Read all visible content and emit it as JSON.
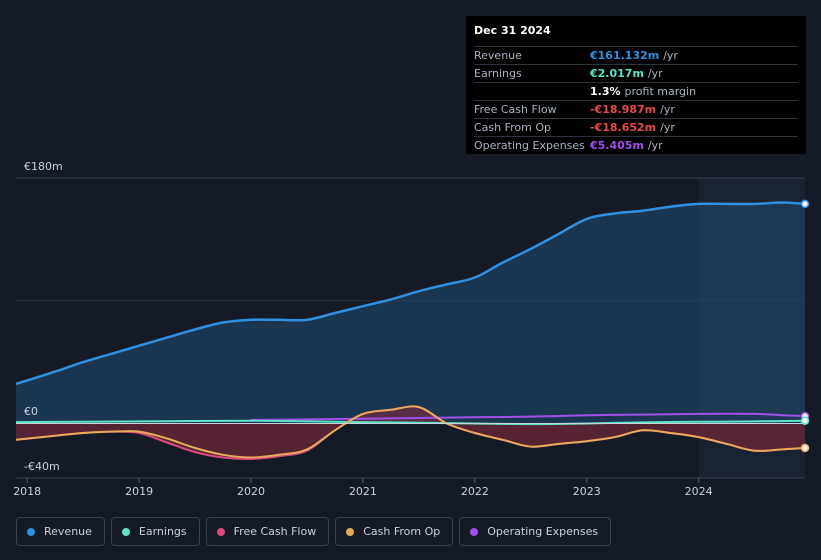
{
  "colors": {
    "revenue": "#2f8fe0",
    "earnings": "#5de3c5",
    "free_cash_flow": "#d9487f",
    "cash_from_op": "#e8a95c",
    "operating_expenses": "#a050e8"
  },
  "tooltip": {
    "date": "Dec 31 2024",
    "rows": [
      {
        "label": "Revenue",
        "value": "€161.132m",
        "unit": "/yr",
        "color": "#2f8fe0"
      },
      {
        "label": "Earnings",
        "value": "€2.017m",
        "unit": "/yr",
        "color": "#5de3c5"
      },
      {
        "label": "",
        "value": "1.3%",
        "unit": "profit margin",
        "color": "#ffffff"
      },
      {
        "label": "Free Cash Flow",
        "value": "-€18.987m",
        "unit": "/yr",
        "color": "#e5484d"
      },
      {
        "label": "Cash From Op",
        "value": "-€18.652m",
        "unit": "/yr",
        "color": "#e5484d"
      },
      {
        "label": "Operating Expenses",
        "value": "€5.405m",
        "unit": "/yr",
        "color": "#a050e8"
      }
    ]
  },
  "legend": [
    {
      "name": "revenue",
      "label": "Revenue",
      "color": "#2f8fe0"
    },
    {
      "name": "earnings",
      "label": "Earnings",
      "color": "#5de3c5"
    },
    {
      "name": "free-cash-flow",
      "label": "Free Cash Flow",
      "color": "#d9487f"
    },
    {
      "name": "cash-from-op",
      "label": "Cash From Op",
      "color": "#e8a95c"
    },
    {
      "name": "operating-expenses",
      "label": "Operating Expenses",
      "color": "#a050e8"
    }
  ],
  "chart_data": {
    "type": "area",
    "title": "",
    "xlabel": "",
    "ylabel": "",
    "ylim": [
      -40,
      180
    ],
    "xlim": [
      2017.9,
      2024.95
    ],
    "y_tick_labels": [
      {
        "value": 180,
        "label": "€180m"
      },
      {
        "value": 0,
        "label": "€0"
      },
      {
        "value": -40,
        "label": "-€40m"
      }
    ],
    "x_ticks": [
      2018,
      2019,
      2020,
      2021,
      2022,
      2023,
      2024
    ],
    "x_tick_labels": [
      "2018",
      "2019",
      "2020",
      "2021",
      "2022",
      "2023",
      "2024"
    ],
    "highlight_from": 2024.0,
    "series": [
      {
        "name": "Revenue",
        "key": "revenue",
        "color": "#2f8fe0",
        "fill": true,
        "x": [
          2017.9,
          2018.25,
          2018.5,
          2018.75,
          2019.0,
          2019.25,
          2019.5,
          2019.75,
          2020.0,
          2020.25,
          2020.5,
          2020.75,
          2021.0,
          2021.25,
          2021.5,
          2021.75,
          2022.0,
          2022.25,
          2022.5,
          2022.75,
          2023.0,
          2023.25,
          2023.5,
          2023.75,
          2024.0,
          2024.25,
          2024.5,
          2024.75,
          2024.95
        ],
        "values": [
          29,
          38,
          45,
          51,
          57,
          63,
          69,
          74,
          76,
          76,
          76,
          81,
          86,
          91,
          97,
          102,
          107,
          118,
          128,
          139,
          150,
          154,
          156,
          159,
          161,
          161,
          161,
          162,
          161
        ]
      },
      {
        "name": "Earnings",
        "key": "earnings",
        "color": "#5de3c5",
        "fill": false,
        "x": [
          2017.9,
          2018.5,
          2019.0,
          2019.5,
          2020.0,
          2020.5,
          2021.0,
          2021.5,
          2022.0,
          2022.5,
          2023.0,
          2023.5,
          2024.0,
          2024.5,
          2024.95
        ],
        "values": [
          1,
          1.2,
          1.5,
          1.8,
          2,
          1.5,
          1,
          0.5,
          0,
          -0.5,
          0,
          0.8,
          1.2,
          1.5,
          2
        ]
      },
      {
        "name": "Free Cash Flow",
        "key": "free_cash_flow",
        "color": "#d9487f",
        "fill": true,
        "x": [
          2017.9,
          2018.25,
          2018.5,
          2018.75,
          2019.0,
          2019.25,
          2019.5,
          2019.75,
          2020.0,
          2020.25,
          2020.5,
          2020.75,
          2021.0,
          2021.25,
          2021.5,
          2021.75,
          2022.0,
          2022.25,
          2022.5,
          2022.75,
          2023.0,
          2023.25,
          2023.5,
          2023.75,
          2024.0,
          2024.25,
          2024.5,
          2024.75,
          2024.95
        ],
        "values": [
          -12,
          -9,
          -7,
          -6,
          -7,
          -14,
          -21,
          -25,
          -26,
          -24,
          -20,
          -5,
          7,
          10,
          12,
          0,
          -7,
          -12,
          -17,
          -15,
          -13,
          -10,
          -5,
          -7,
          -10,
          -15,
          -20,
          -19,
          -18
        ]
      },
      {
        "name": "Cash From Op",
        "key": "cash_from_op",
        "color": "#e8a95c",
        "fill": false,
        "x": [
          2017.9,
          2018.25,
          2018.5,
          2018.75,
          2019.0,
          2019.25,
          2019.5,
          2019.75,
          2020.0,
          2020.25,
          2020.5,
          2020.75,
          2021.0,
          2021.25,
          2021.5,
          2021.75,
          2022.0,
          2022.25,
          2022.5,
          2022.75,
          2023.0,
          2023.25,
          2023.5,
          2023.75,
          2024.0,
          2024.25,
          2024.5,
          2024.75,
          2024.95
        ],
        "values": [
          -12,
          -9,
          -7,
          -6,
          -6,
          -11,
          -18,
          -23,
          -25,
          -23,
          -19,
          -5,
          7,
          10,
          12,
          0,
          -7,
          -12,
          -17,
          -15,
          -13,
          -10,
          -5,
          -7,
          -10,
          -15,
          -20,
          -19,
          -18
        ]
      },
      {
        "name": "Operating Expenses",
        "key": "operating_expenses",
        "color": "#a050e8",
        "fill": false,
        "x": [
          2020.0,
          2020.5,
          2021.0,
          2021.5,
          2022.0,
          2022.5,
          2023.0,
          2023.5,
          2024.0,
          2024.5,
          2024.75,
          2024.95
        ],
        "values": [
          2.5,
          3,
          3.5,
          4,
          4.5,
          5,
          6,
          6.5,
          7,
          7,
          6,
          5.4
        ]
      }
    ]
  }
}
